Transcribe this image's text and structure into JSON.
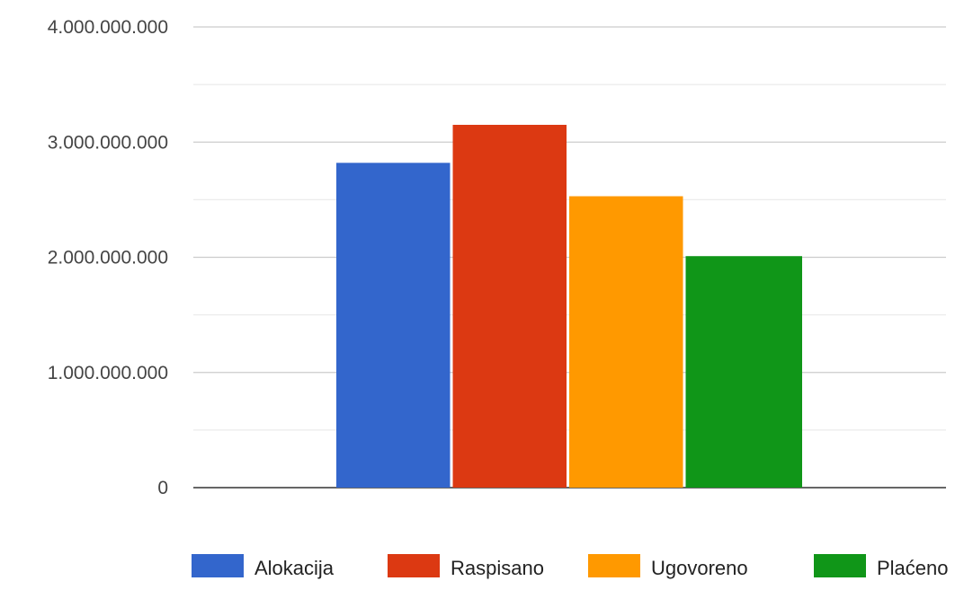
{
  "chart_data": {
    "type": "bar",
    "categories": [
      ""
    ],
    "series": [
      {
        "name": "Alokacija",
        "values": [
          2820000000
        ],
        "color": "#3366cc"
      },
      {
        "name": "Raspisano",
        "values": [
          3150000000
        ],
        "color": "#dc3912"
      },
      {
        "name": "Ugovoreno",
        "values": [
          2530000000
        ],
        "color": "#ff9900"
      },
      {
        "name": "Plaćeno",
        "values": [
          2010000000
        ],
        "color": "#109618"
      }
    ],
    "title": "",
    "xlabel": "",
    "ylabel": "",
    "ylim": [
      0,
      4000000000
    ],
    "y_ticks": [
      0,
      1000000000,
      2000000000,
      3000000000,
      4000000000
    ],
    "y_tick_labels": [
      "0",
      "1.000.000.000",
      "2.000.000.000",
      "3.000.000.000",
      "4.000.000.000"
    ],
    "grid": true,
    "minor_grid": true,
    "legend": "bottom"
  }
}
